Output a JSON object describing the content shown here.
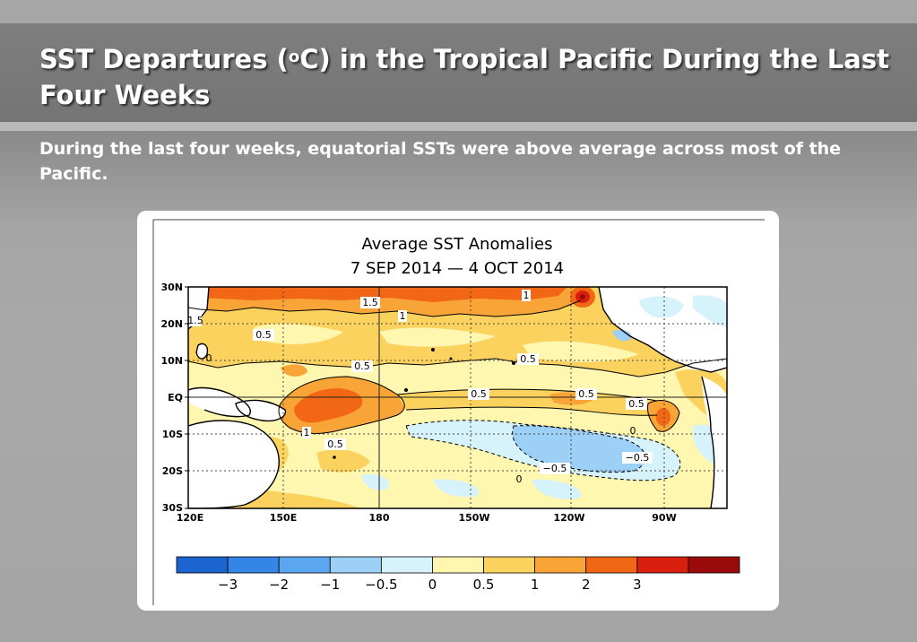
{
  "slide": {
    "title_pre": "SST Departures (",
    "title_sup": "o",
    "title_post": "C) in the Tropical Pacific During the Last Four Weeks",
    "summary": "During the last four weeks, equatorial SSTs were above average across most of the Pacific."
  },
  "map": {
    "title_line1": "Average SST Anomalies",
    "title_line2": "7 SEP 2014 — 4 OCT 2014",
    "lat_labels": [
      "30N",
      "20N",
      "10N",
      "EQ",
      "10S",
      "20S",
      "30S"
    ],
    "lon_labels": [
      "120E",
      "150E",
      "180",
      "150W",
      "120W",
      "90W"
    ],
    "contour_labels": [
      "1.5",
      "1",
      "1",
      "0.5",
      "0.5",
      "0.5",
      "0.5",
      "0.5",
      "0.5",
      "1",
      "0.5",
      "−0.5",
      "−0.5",
      "0",
      "0",
      "1.5",
      "0"
    ],
    "colorbar_ticks": [
      "−3",
      "−2",
      "−1",
      "−0.5",
      "0",
      "0.5",
      "1",
      "2",
      "3"
    ],
    "colorbar_colors": [
      "#1c64d0",
      "#3585e6",
      "#5aa7ef",
      "#9dd0f6",
      "#d6f2fb",
      "#fff6b0",
      "#fcd25e",
      "#f8a436",
      "#f26716",
      "#d9200f",
      "#9b0a0a"
    ],
    "land_color": "#ffffff",
    "grid": "dotted"
  }
}
